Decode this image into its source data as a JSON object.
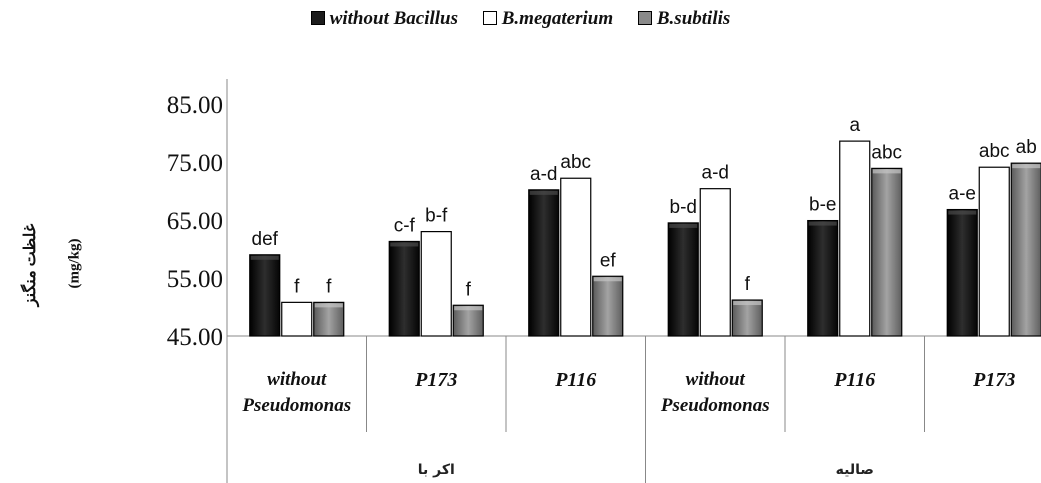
{
  "chart_data": {
    "type": "bar",
    "legend": [
      {
        "name": "without Bacillus",
        "color": "#1c1c1c"
      },
      {
        "name": "B.megaterium",
        "color": "#ffffff"
      },
      {
        "name": "B.subtilis",
        "color": "#8a8a8a"
      }
    ],
    "ylabel": "غلظت منگنز",
    "ylabel_unit": "(mg/kg)",
    "ylim": [
      45,
      85
    ],
    "yticks": [
      "45.00",
      "55.00",
      "65.00",
      "75.00",
      "85.00"
    ],
    "groups": [
      {
        "label": "without Pseudomonas",
        "values": [
          59.0,
          50.8,
          50.8
        ],
        "letters": [
          "def",
          "f",
          "f"
        ]
      },
      {
        "label": "P173",
        "values": [
          61.3,
          63.0,
          50.3
        ],
        "letters": [
          "c-f",
          "b-f",
          "f"
        ]
      },
      {
        "label": "P116",
        "values": [
          70.2,
          72.2,
          55.3
        ],
        "letters": [
          "a-d",
          "abc",
          "ef"
        ]
      },
      {
        "label": "without Pseudomonas",
        "values": [
          64.5,
          70.4,
          51.2
        ],
        "letters": [
          "b-d",
          "a-d",
          "f"
        ]
      },
      {
        "label": "P116",
        "values": [
          64.9,
          78.6,
          73.9
        ],
        "letters": [
          "b-e",
          "a",
          "abc"
        ]
      },
      {
        "label": "P173",
        "values": [
          66.8,
          74.1,
          74.8
        ],
        "letters": [
          "a-e",
          "abc",
          "ab"
        ]
      }
    ],
    "supergroups": [
      {
        "label": "اکر با",
        "span": [
          0,
          2
        ]
      },
      {
        "label": "صالیه",
        "span": [
          3,
          5
        ]
      }
    ]
  }
}
